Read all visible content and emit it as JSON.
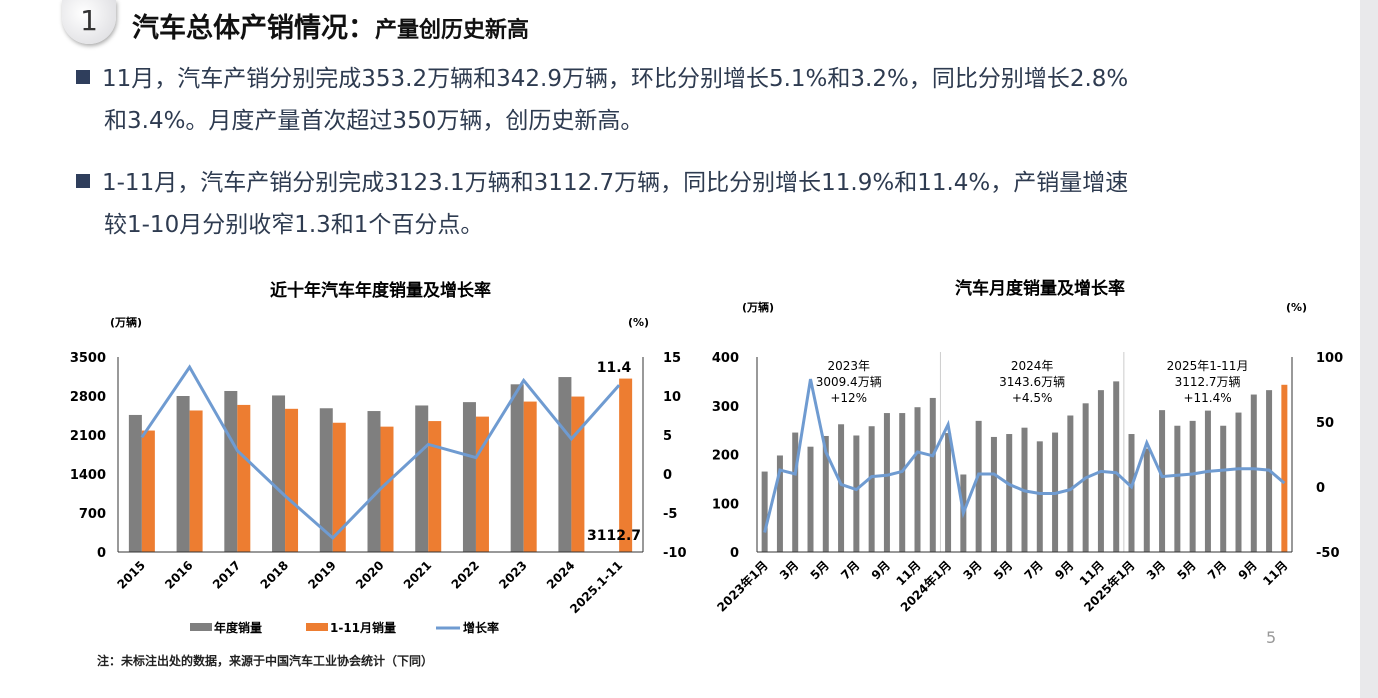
{
  "header": {
    "number": "1",
    "title": "汽车总体产销情况：",
    "subtitle": "产量创历史新高"
  },
  "bullets": [
    {
      "line1": "11月，汽车产销分别完成353.2万辆和342.9万辆，环比分别增长5.1%和3.2%，同比分别增长2.8%",
      "line2": "和3.4%。月度产量首次超过350万辆，创历史新高。"
    },
    {
      "line1": "1-11月，汽车产销分别完成3123.1万辆和3112.7万辆，同比分别增长11.9%和11.4%，产销量增速",
      "line2": "较1-10月分别收窄1.3和1个百分点。"
    }
  ],
  "note": "注：未标注出处的数据，来源于中国汽车工业协会统计（下同）",
  "page_number": "5",
  "colors": {
    "gray": "#7f7f7f",
    "orange": "#ed7d31",
    "blue": "#6f9bd1"
  },
  "chart_data": [
    {
      "type": "bar",
      "title": "近十年汽车年度销量及增长率",
      "ylabel": "(万辆)",
      "y2label": "(%)",
      "ylim": [
        0,
        3500
      ],
      "yticks": [
        0,
        700,
        1400,
        2100,
        2800,
        3500
      ],
      "y2lim": [
        -10,
        15
      ],
      "y2ticks": [
        -10,
        -5,
        0,
        5,
        10,
        15
      ],
      "categories": [
        "2015",
        "2016",
        "2017",
        "2018",
        "2019",
        "2020",
        "2021",
        "2022",
        "2023",
        "2024",
        "2025.1-11"
      ],
      "series": [
        {
          "name": "年度销量",
          "type": "bar",
          "values": [
            2460,
            2800,
            2890,
            2810,
            2580,
            2530,
            2630,
            2690,
            3010,
            3140,
            null
          ]
        },
        {
          "name": "1-11月销量",
          "type": "bar",
          "values": [
            2180,
            2540,
            2640,
            2570,
            2320,
            2250,
            2350,
            2430,
            2700,
            2790,
            3112.7
          ]
        },
        {
          "name": "增长率",
          "type": "line",
          "axis": "right",
          "values": [
            4.7,
            13.7,
            3.0,
            -2.8,
            -8.2,
            -1.9,
            3.8,
            2.1,
            12.0,
            4.5,
            11.4
          ]
        }
      ],
      "annotations": [
        "11.4",
        "3112.7"
      ],
      "legend": "bottom"
    },
    {
      "type": "bar",
      "title": "汽车月度销量及增长率",
      "ylabel": "(万辆)",
      "y2label": "(%)",
      "ylim": [
        0,
        400
      ],
      "yticks": [
        0,
        100,
        200,
        300,
        400
      ],
      "y2lim": [
        -50,
        100
      ],
      "y2ticks": [
        -50,
        0,
        50,
        100
      ],
      "categories": [
        "2023年1月",
        "2月",
        "3月",
        "4月",
        "5月",
        "6月",
        "7月",
        "8月",
        "9月",
        "10月",
        "11月",
        "12月",
        "2024年1月",
        "2月",
        "3月",
        "4月",
        "5月",
        "6月",
        "7月",
        "8月",
        "9月",
        "10月",
        "11月",
        "12月",
        "2025年1月",
        "2月",
        "3月",
        "4月",
        "5月",
        "6月",
        "7月",
        "8月",
        "9月",
        "10月",
        "11月"
      ],
      "tick_labels": [
        "2023年1月",
        "3月",
        "5月",
        "7月",
        "9月",
        "11月",
        "2024年1月",
        "3月",
        "5月",
        "7月",
        "9月",
        "11月",
        "2025年1月",
        "3月",
        "5月",
        "7月",
        "9月",
        "11月"
      ],
      "series": [
        {
          "name": "月度销量",
          "type": "bar",
          "values": [
            165,
            198,
            245,
            216,
            238,
            262,
            239,
            258,
            285,
            285,
            297,
            316,
            244,
            159,
            269,
            236,
            242,
            255,
            227,
            245,
            280,
            305,
            332,
            350,
            242,
            212,
            291,
            259,
            269,
            290,
            259,
            286,
            323,
            332,
            343
          ]
        },
        {
          "name": "增长率",
          "type": "line",
          "axis": "right",
          "values": [
            -35,
            13,
            10,
            83,
            27,
            2,
            -2,
            8,
            9,
            12,
            27,
            24,
            48,
            -20,
            10,
            10,
            2,
            -3,
            -5,
            -5,
            -2,
            7,
            12,
            11,
            0,
            34,
            8,
            9,
            10,
            12,
            13,
            14,
            14,
            13,
            3
          ]
        }
      ],
      "annotations": [
        {
          "l1": "2023年",
          "l2": "3009.4万辆",
          "l3": "+12%"
        },
        {
          "l1": "2024年",
          "l2": "3143.6万辆",
          "l3": "+4.5%"
        },
        {
          "l1": "2025年1-11月",
          "l2": "3112.7万辆",
          "l3": "+11.4%"
        }
      ]
    }
  ]
}
